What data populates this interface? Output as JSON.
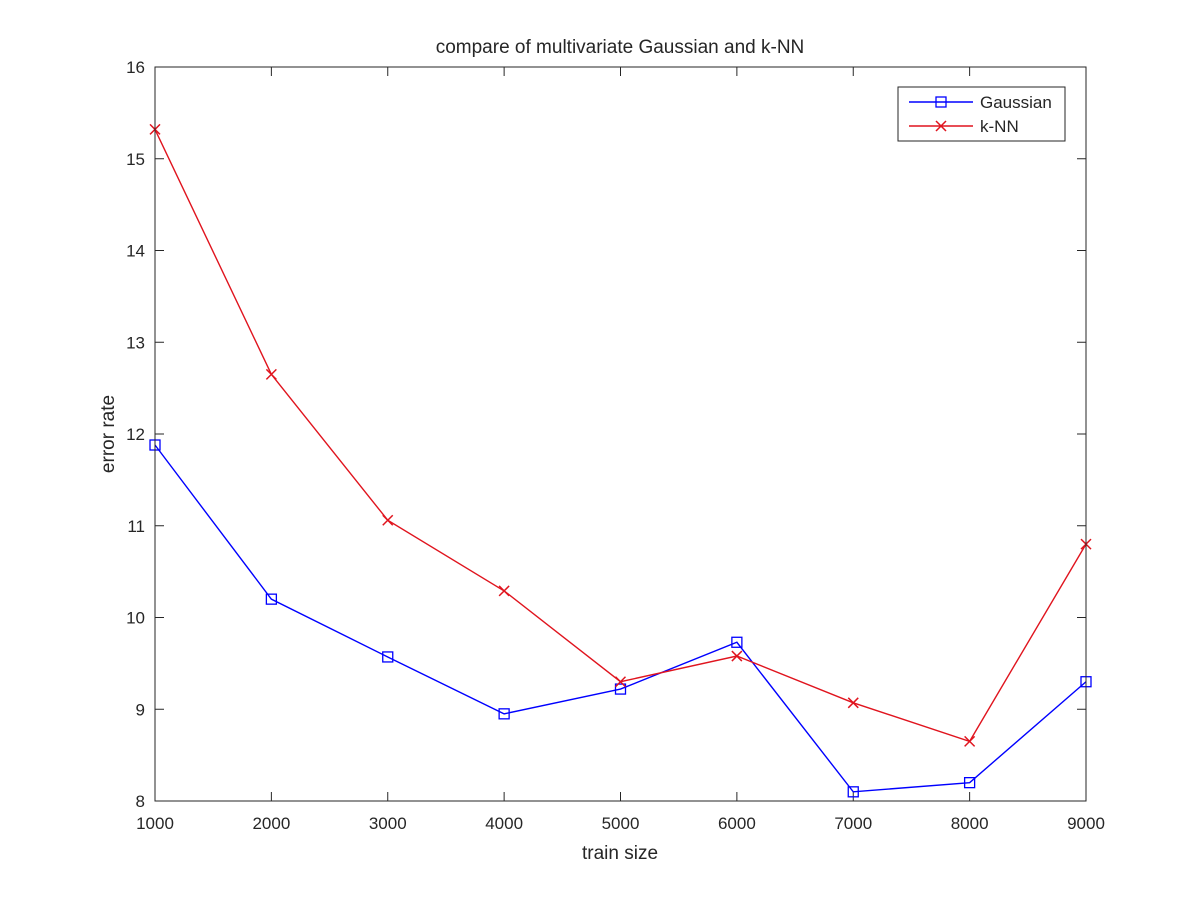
{
  "chart_data": {
    "type": "line",
    "title": "compare of multivariate Gaussian and k-NN",
    "xlabel": "train size",
    "ylabel": "error rate",
    "xlim": [
      1000,
      9000
    ],
    "ylim": [
      8,
      16
    ],
    "xticks": [
      1000,
      2000,
      3000,
      4000,
      5000,
      6000,
      7000,
      8000,
      9000
    ],
    "yticks": [
      8,
      9,
      10,
      11,
      12,
      13,
      14,
      15,
      16
    ],
    "x": [
      1000,
      2000,
      3000,
      4000,
      5000,
      6000,
      7000,
      8000,
      9000
    ],
    "grid": false,
    "legend_position": "top-right",
    "series": [
      {
        "name": "Gaussian",
        "color": "#0000ff",
        "marker": "square",
        "values": [
          11.88,
          10.2,
          9.57,
          8.95,
          9.22,
          9.73,
          8.1,
          8.2,
          9.3
        ]
      },
      {
        "name": "k-NN",
        "color": "#e0141e",
        "marker": "x",
        "values": [
          15.32,
          12.65,
          11.06,
          10.29,
          9.3,
          9.58,
          9.07,
          8.65,
          10.8
        ]
      }
    ]
  }
}
